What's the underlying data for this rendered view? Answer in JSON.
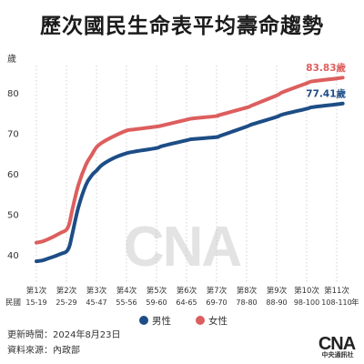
{
  "title": "歷次國民生命表平均壽命趨勢",
  "chart_data": {
    "type": "line",
    "yunit": "歲",
    "ylim": [
      33,
      87
    ],
    "yticks": [
      40,
      50,
      60,
      70,
      80
    ],
    "x_row_label": "民國",
    "x_unit": "年",
    "categories": [
      {
        "edition": "第1次",
        "period": "15-19"
      },
      {
        "edition": "第2次",
        "period": "25-29"
      },
      {
        "edition": "第3次",
        "period": "45-47"
      },
      {
        "edition": "第4次",
        "period": "55-56"
      },
      {
        "edition": "第5次",
        "period": "59-60"
      },
      {
        "edition": "第6次",
        "period": "64-65"
      },
      {
        "edition": "第7次",
        "period": "69-70"
      },
      {
        "edition": "第8次",
        "period": "78-80"
      },
      {
        "edition": "第9次",
        "period": "88-90"
      },
      {
        "edition": "第10次",
        "period": "98-100"
      },
      {
        "edition": "第11次",
        "period": "108-110"
      }
    ],
    "x": [
      15,
      25,
      45,
      55,
      59,
      64,
      69,
      78,
      88,
      98,
      108
    ],
    "series": [
      {
        "name": "男性",
        "color": "#1d4d86",
        "x": [
          15,
          17,
          19,
          21,
          23,
          25,
          27,
          29,
          33,
          38,
          42,
          45,
          47,
          51,
          55,
          56,
          59,
          60,
          64,
          65,
          69,
          70,
          78,
          80,
          88,
          90,
          98,
          100,
          108,
          110
        ],
        "values": [
          38.6,
          38.8,
          39.3,
          39.8,
          40.4,
          41.0,
          42.3,
          45.5,
          52.0,
          57.5,
          59.9,
          61.0,
          62.5,
          64.2,
          65.3,
          65.7,
          66.6,
          67.1,
          68.5,
          68.8,
          69.3,
          69.6,
          71.9,
          72.5,
          74.3,
          74.9,
          76.3,
          76.7,
          77.4,
          77.6
        ],
        "end_label": "77.41歲"
      },
      {
        "name": "女性",
        "color": "#dd5e5e",
        "x": [
          15,
          17,
          19,
          21,
          23,
          25,
          27,
          29,
          33,
          38,
          42,
          45,
          47,
          51,
          55,
          56,
          59,
          60,
          64,
          65,
          69,
          70,
          78,
          80,
          88,
          90,
          98,
          100,
          108,
          110
        ],
        "values": [
          43.2,
          43.5,
          44.1,
          44.8,
          45.6,
          46.4,
          48.0,
          51.5,
          57.5,
          62.5,
          65.0,
          66.8,
          68.0,
          69.6,
          70.9,
          71.2,
          71.9,
          72.2,
          73.6,
          73.9,
          74.5,
          74.8,
          76.6,
          77.2,
          79.6,
          80.4,
          82.6,
          83.1,
          83.8,
          84.0
        ],
        "end_label": "83.83歲"
      }
    ],
    "legend": "bottom-center",
    "grid": "vertical-dotted"
  },
  "footer": {
    "update_time": "更新時間：2024年8月23日",
    "source": "資料來源：內政部"
  },
  "brand": {
    "logo_text": "CNA",
    "name": "中央通訊社"
  },
  "colors": {
    "male": "#1d4d86",
    "female": "#dd5e5e",
    "grid": "#c7c7c7",
    "watermark": "#e3e3e3",
    "brand": "#222222"
  }
}
